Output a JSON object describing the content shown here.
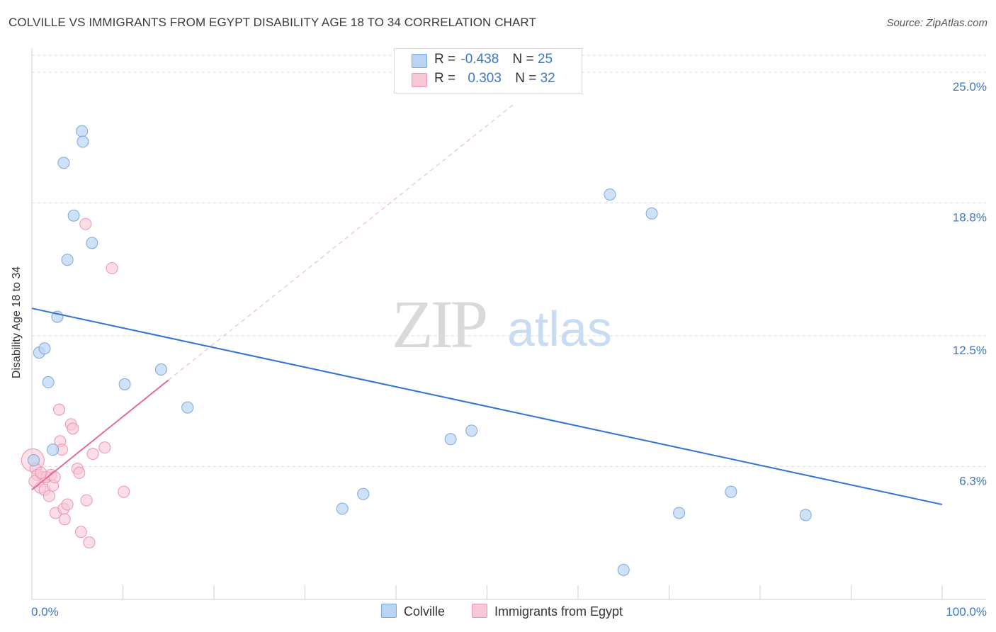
{
  "title": "COLVILLE VS IMMIGRANTS FROM EGYPT DISABILITY AGE 18 TO 34 CORRELATION CHART",
  "source": "Source: ZipAtlas.com",
  "watermark": {
    "zip": "ZIP",
    "atlas": "atlas"
  },
  "legend": {
    "rows": [
      {
        "r_label": "R =",
        "r_value": "-0.438",
        "n_label": "N =",
        "n_value": "25"
      },
      {
        "r_label": "R =",
        "r_value": "0.303",
        "n_label": "N =",
        "n_value": "32"
      }
    ]
  },
  "colors": {
    "colville_fill": "#b9d4f4",
    "colville_stroke": "#7aa7e0",
    "colville_line": "#2f72d0",
    "egypt_fill": "#f8c7d6",
    "egypt_stroke": "#ec94b0",
    "egypt_line": "#e56b93",
    "grid": "#dedede",
    "axis_text": "#3a78c9"
  },
  "chart_data": {
    "type": "scatter",
    "title": "COLVILLE VS IMMIGRANTS FROM EGYPT DISABILITY AGE 18 TO 34 CORRELATION CHART",
    "xlabel": "",
    "ylabel": "Disability Age 18 to 34",
    "xlim": [
      0,
      100
    ],
    "ylim": [
      0,
      25.8
    ],
    "x_tick_labels": [
      "0.0%",
      "100.0%"
    ],
    "y_ticks": [
      6.3,
      12.5,
      18.8,
      25.0
    ],
    "y_tick_labels": [
      "6.3%",
      "12.5%",
      "18.8%",
      "25.0%"
    ],
    "grid": true,
    "legend_position": "top-center",
    "series": [
      {
        "name": "Colville",
        "points": [
          [
            0.2,
            6.6
          ],
          [
            0.8,
            11.7
          ],
          [
            1.4,
            11.9
          ],
          [
            1.8,
            10.3
          ],
          [
            2.3,
            7.1
          ],
          [
            2.8,
            13.4
          ],
          [
            3.5,
            20.7
          ],
          [
            3.9,
            16.1
          ],
          [
            4.6,
            18.2
          ],
          [
            5.5,
            22.2
          ],
          [
            5.6,
            21.7
          ],
          [
            6.6,
            16.9
          ],
          [
            10.2,
            10.2
          ],
          [
            14.2,
            10.9
          ],
          [
            17.1,
            9.1
          ],
          [
            34.1,
            4.3
          ],
          [
            36.4,
            5.0
          ],
          [
            46.0,
            7.6
          ],
          [
            48.3,
            8.0
          ],
          [
            63.5,
            19.2
          ],
          [
            65.0,
            1.4
          ],
          [
            68.1,
            18.3
          ],
          [
            71.1,
            4.1
          ],
          [
            76.8,
            5.1
          ],
          [
            85.0,
            4.0
          ]
        ],
        "trend": {
          "x": [
            0,
            100
          ],
          "y": [
            13.8,
            4.5
          ]
        }
      },
      {
        "name": "Immigrants from Egypt",
        "points": [
          [
            0.1,
            6.6
          ],
          [
            0.4,
            6.2
          ],
          [
            0.6,
            5.9
          ],
          [
            0.9,
            5.3
          ],
          [
            1.2,
            5.8
          ],
          [
            1.4,
            5.2
          ],
          [
            1.6,
            5.8
          ],
          [
            1.9,
            4.9
          ],
          [
            2.1,
            5.9
          ],
          [
            2.3,
            5.4
          ],
          [
            2.5,
            5.8
          ],
          [
            2.6,
            4.1
          ],
          [
            3.0,
            9.0
          ],
          [
            3.1,
            7.5
          ],
          [
            3.3,
            7.1
          ],
          [
            3.5,
            4.3
          ],
          [
            3.6,
            3.8
          ],
          [
            3.9,
            4.5
          ],
          [
            4.3,
            8.3
          ],
          [
            4.5,
            8.1
          ],
          [
            5.0,
            6.2
          ],
          [
            5.2,
            6.0
          ],
          [
            5.4,
            3.2
          ],
          [
            5.9,
            17.8
          ],
          [
            6.0,
            4.7
          ],
          [
            6.3,
            2.7
          ],
          [
            6.7,
            6.9
          ],
          [
            8.0,
            7.2
          ],
          [
            8.8,
            15.7
          ],
          [
            10.1,
            5.1
          ],
          [
            0.3,
            5.6
          ],
          [
            1.0,
            6.0
          ]
        ],
        "trend": {
          "x": [
            0,
            15
          ],
          "y": [
            5.2,
            10.4
          ]
        },
        "trend_extended": {
          "x": [
            15,
            53
          ],
          "y": [
            10.4,
            23.5
          ]
        }
      }
    ]
  },
  "bottom_legend": [
    {
      "label": "Colville"
    },
    {
      "label": "Immigrants from Egypt"
    }
  ]
}
